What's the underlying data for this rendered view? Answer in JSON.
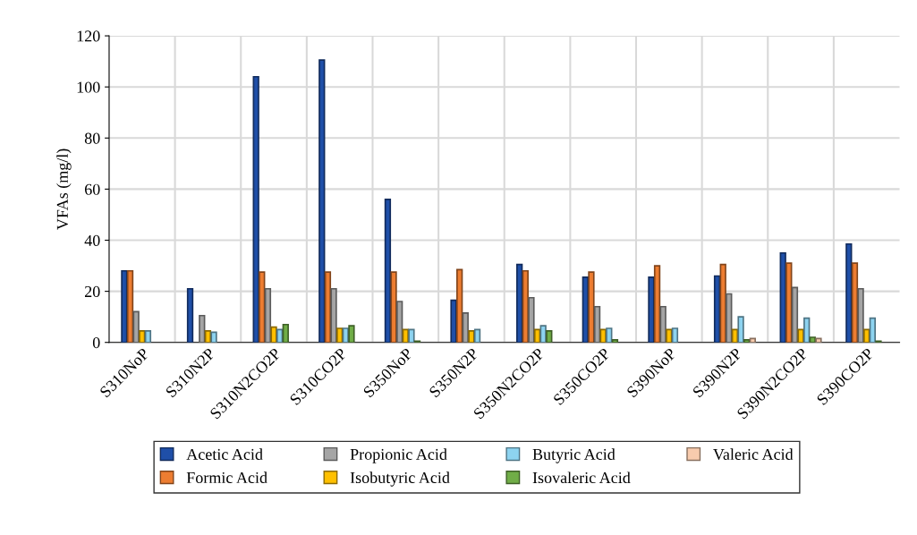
{
  "chart_data": {
    "type": "bar",
    "ylabel": "VFAs (mg/l)",
    "categories": [
      "S310NoP",
      "S310N2P",
      "S310N2CO2P",
      "S310CO2P",
      "S350NoP",
      "S350N2P",
      "S350N2CO2P",
      "S350CO2P",
      "S390NoP",
      "S390N2P",
      "S390N2CO2P",
      "S390CO2P"
    ],
    "series": [
      {
        "name": "Acetic Acid",
        "color": "#1f4fa8",
        "values": [
          28,
          21,
          104,
          110.5,
          56,
          16.5,
          30.5,
          25.5,
          25.5,
          26,
          35,
          38.5
        ]
      },
      {
        "name": "Formic Acid",
        "color": "#ed7d31",
        "values": [
          28,
          null,
          27.5,
          27.5,
          27.5,
          28.5,
          28,
          27.5,
          30,
          30.5,
          31,
          31
        ]
      },
      {
        "name": "Propionic Acid",
        "color": "#a5a5a5",
        "values": [
          12,
          10.5,
          21,
          21,
          16,
          11.5,
          17.5,
          14,
          14,
          19,
          21.5,
          21
        ]
      },
      {
        "name": "Isobutyric Acid",
        "color": "#ffc000",
        "values": [
          4.5,
          4.5,
          6,
          5.5,
          5,
          4.5,
          5,
          5,
          5,
          5,
          5,
          5
        ]
      },
      {
        "name": "Butyric Acid",
        "color": "#8dd3f0",
        "values": [
          4.5,
          4,
          5,
          5.5,
          5,
          5,
          6.5,
          5.5,
          5.5,
          10,
          9.5,
          9.5
        ]
      },
      {
        "name": "Isovaleric Acid",
        "color": "#70ad47",
        "values": [
          null,
          null,
          7,
          6.5,
          0.5,
          null,
          4.5,
          1,
          null,
          1,
          2,
          0.5
        ]
      },
      {
        "name": "Valeric Acid",
        "color": "#f8cbad",
        "values": [
          null,
          null,
          null,
          null,
          null,
          null,
          null,
          null,
          null,
          1.5,
          1.5,
          null
        ]
      }
    ],
    "ylim": [
      0,
      120
    ],
    "yticks": [
      0,
      20,
      40,
      60,
      80,
      100,
      120
    ],
    "grid": true,
    "legend": "bottom"
  }
}
